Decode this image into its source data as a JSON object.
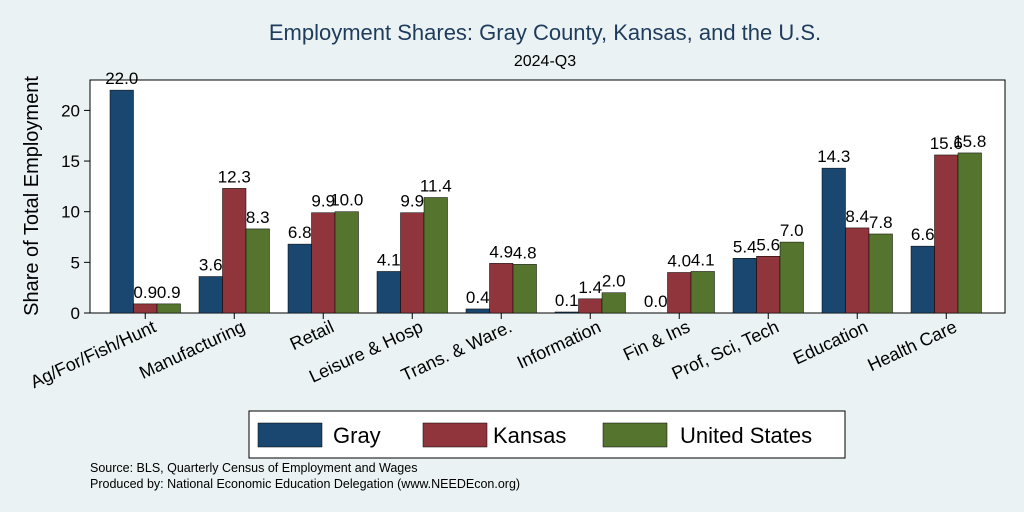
{
  "chart_data": {
    "type": "bar",
    "title": "Employment Shares: Gray County, Kansas, and the U.S.",
    "subtitle": "2024-Q3",
    "ylabel": "Share of Total Employment",
    "xlabel": "",
    "ylim": [
      0,
      23
    ],
    "yticks": [
      0,
      5,
      10,
      15,
      20
    ],
    "categories": [
      "Ag/For/Fish/Hunt",
      "Manufacturing",
      "Retail",
      "Leisure & Hosp",
      "Trans. & Ware.",
      "Information",
      "Fin & Ins",
      "Prof, Sci, Tech",
      "Education",
      "Health Care"
    ],
    "series": [
      {
        "name": "Gray",
        "color": "#1a476f",
        "values": [
          22.0,
          3.6,
          6.8,
          4.1,
          0.4,
          0.1,
          0.0,
          5.4,
          14.3,
          6.6
        ]
      },
      {
        "name": "Kansas",
        "color": "#90353b",
        "values": [
          0.9,
          12.3,
          9.9,
          9.9,
          4.9,
          1.4,
          4.0,
          5.6,
          8.4,
          15.6
        ]
      },
      {
        "name": "United States",
        "color": "#55752f",
        "values": [
          0.9,
          8.3,
          10.0,
          11.4,
          4.8,
          2.0,
          4.1,
          7.0,
          7.8,
          15.8
        ]
      }
    ],
    "legend_position": "bottom",
    "grid": false
  },
  "footer": {
    "source": "Source: BLS, Quarterly Census of Employment and Wages",
    "produced": "Produced by: National Economic Education Delegation (www.NEEDEcon.org)"
  }
}
